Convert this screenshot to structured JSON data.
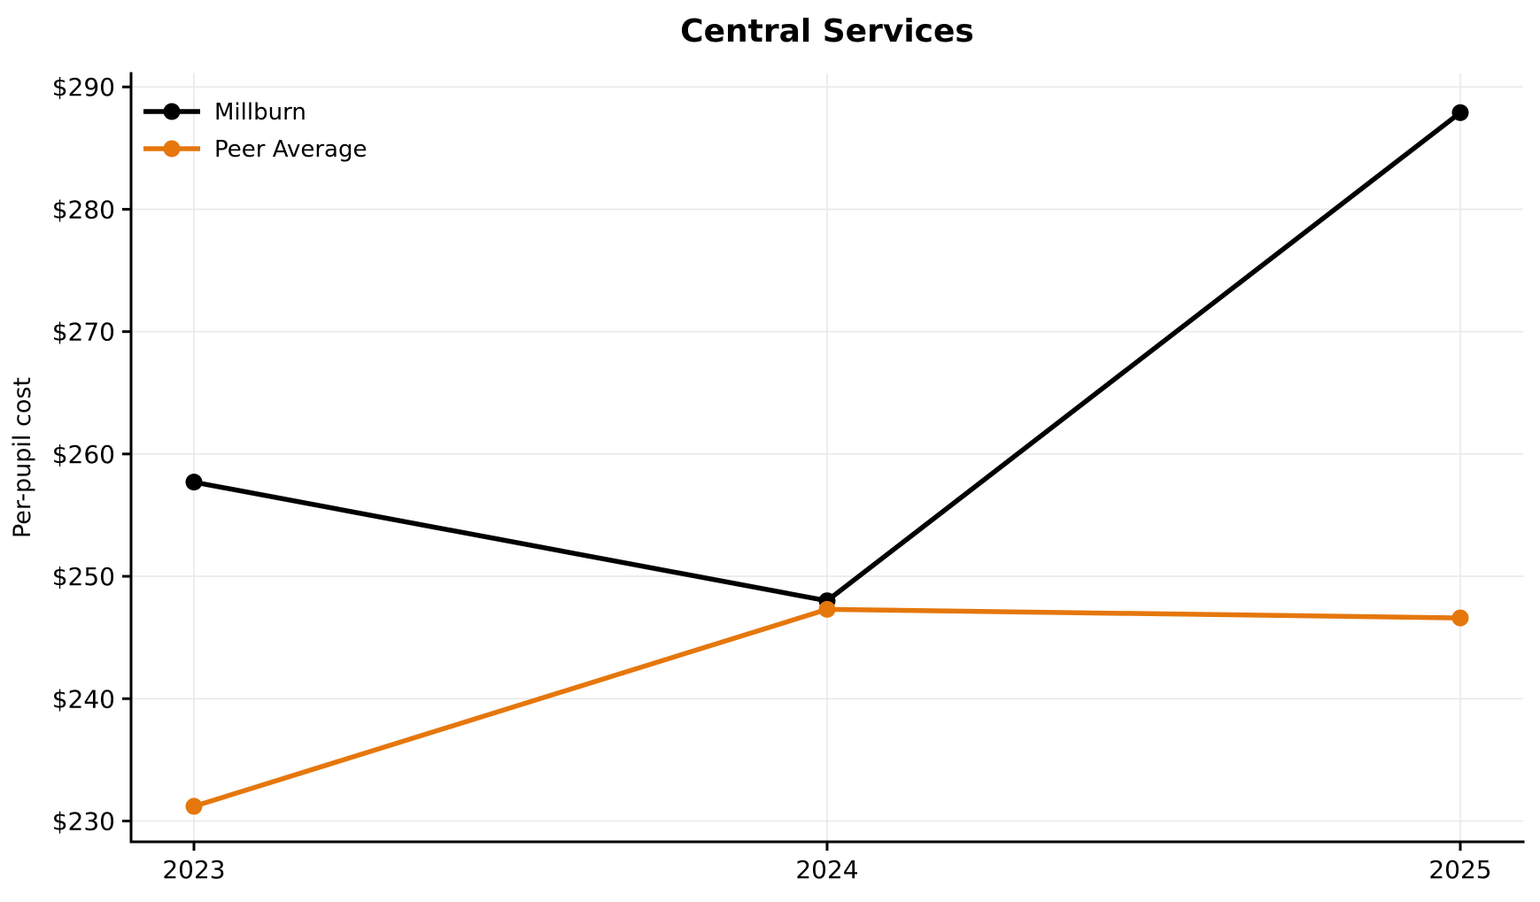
{
  "chart_data": {
    "type": "line",
    "title": "Central Services",
    "xlabel": "",
    "ylabel": "Per-pupil cost",
    "categories": [
      "2023",
      "2024",
      "2025"
    ],
    "series": [
      {
        "name": "Millburn",
        "color": "#000000",
        "values": [
          257.7,
          248.0,
          287.9
        ]
      },
      {
        "name": "Peer Average",
        "color": "#E5770C",
        "values": [
          231.2,
          247.3,
          246.6
        ]
      }
    ],
    "ylim": [
      228.3,
      291.1
    ],
    "yticks": [
      230,
      240,
      250,
      260,
      270,
      280,
      290
    ],
    "ytick_prefix": "$",
    "grid": true,
    "legend_position": "upper left"
  },
  "colors": {
    "background": "#ffffff",
    "grid": "#e9e9e9",
    "axis": "#000000",
    "text": "#000000"
  }
}
